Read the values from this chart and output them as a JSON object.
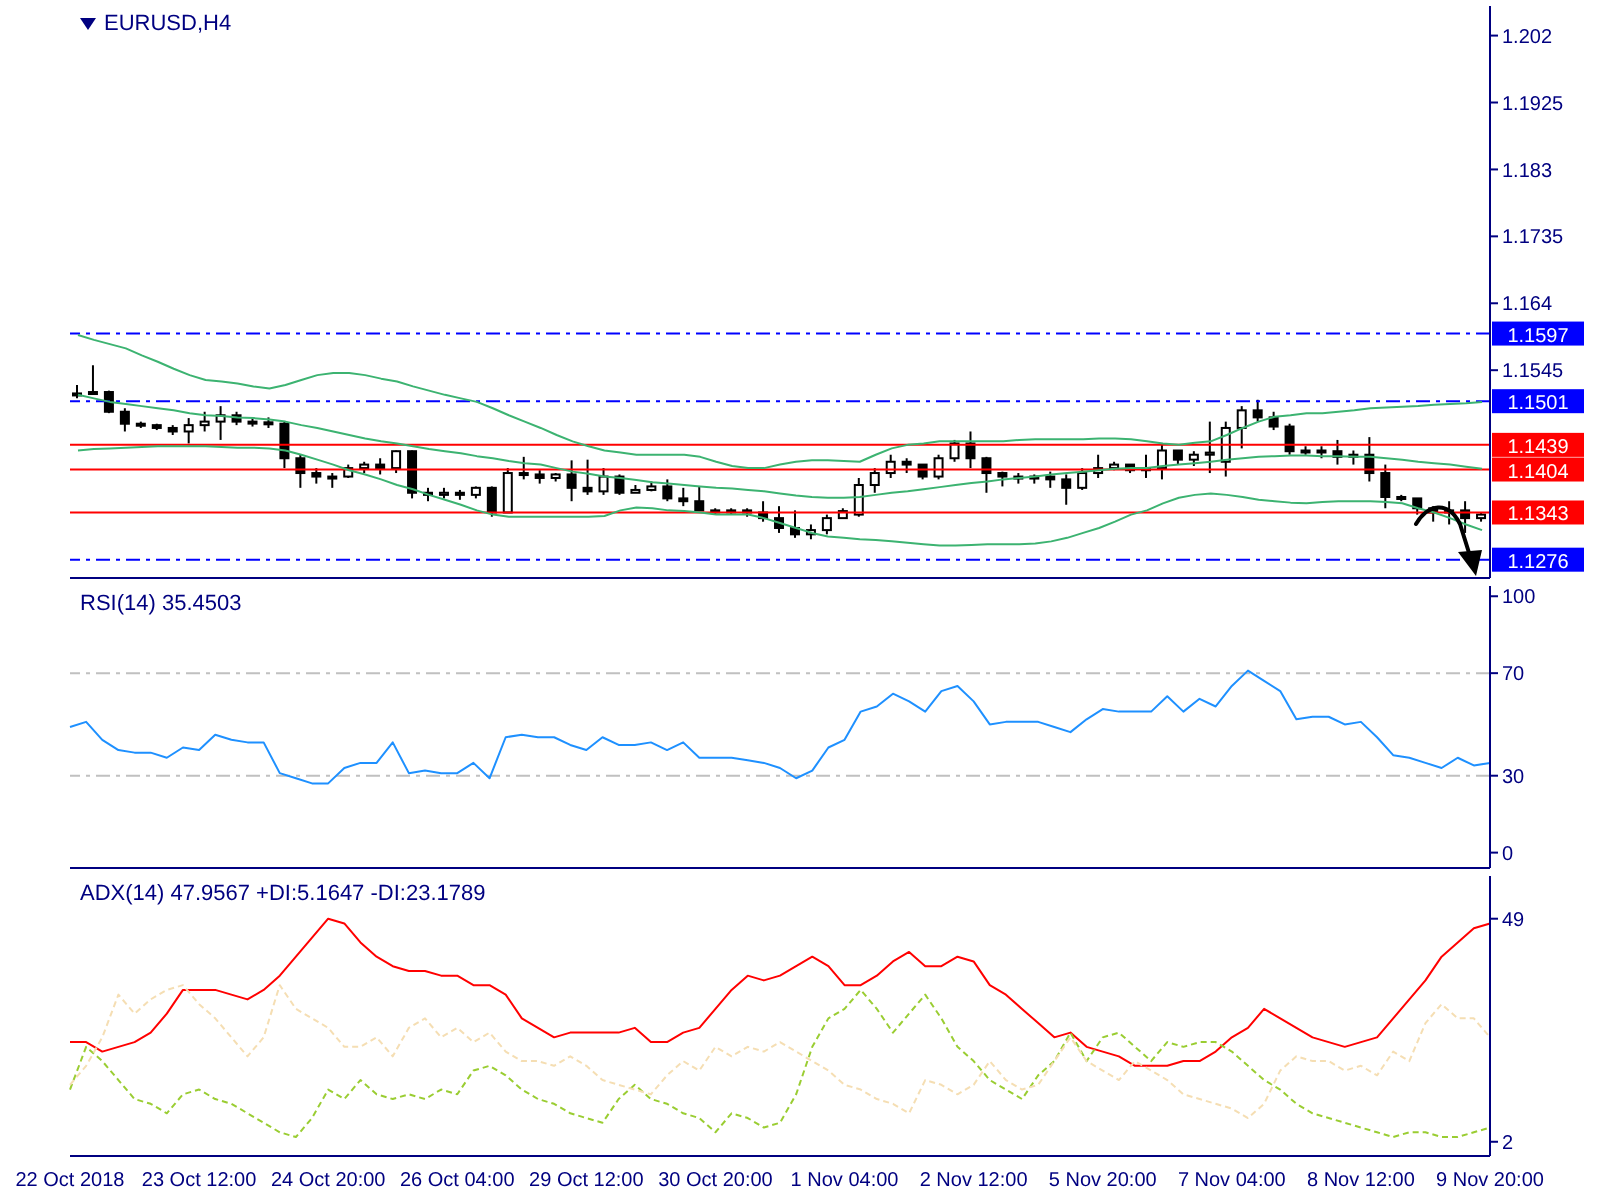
{
  "chart_data": [
    {
      "type": "candlestick",
      "title": "EURUSD,H4",
      "tick_labels": "y",
      "color": "#000000",
      "categories": [
        null,
        null,
        null,
        null,
        null,
        null,
        null,
        null,
        null,
        null,
        null,
        null,
        null,
        null,
        null,
        null,
        null,
        null,
        null,
        null,
        null,
        null,
        null,
        null,
        null,
        null,
        null,
        null,
        null,
        null,
        null,
        null,
        null,
        null,
        null,
        null,
        null,
        null,
        null,
        null,
        null,
        null,
        null,
        null,
        null,
        null,
        null,
        null,
        null,
        null,
        null,
        null,
        null,
        null,
        null,
        null,
        null,
        null,
        null,
        null,
        null,
        null,
        null,
        null,
        null,
        null,
        null,
        null,
        null,
        null,
        null,
        null,
        null,
        null,
        null,
        null,
        null,
        null,
        null,
        null,
        null,
        null,
        null,
        null,
        null,
        null,
        null,
        null,
        null
      ],
      "ylim": [
        1.125,
        1.2062
      ],
      "yticks": [
        1.202,
        1.1925,
        1.183,
        1.1735,
        1.164,
        1.1545
      ],
      "ohlc": [
        [
          1.151,
          1.1524,
          1.1505,
          1.1512
        ],
        [
          1.1512,
          1.1552,
          1.151,
          1.1514
        ],
        [
          1.1514,
          1.1516,
          1.1484,
          1.1486
        ],
        [
          1.1486,
          1.1491,
          1.1458,
          1.1469
        ],
        [
          1.1469,
          1.1472,
          1.1463,
          1.1467
        ],
        [
          1.1467,
          1.1469,
          1.146,
          1.1463
        ],
        [
          1.1463,
          1.1467,
          1.1453,
          1.1458
        ],
        [
          1.1458,
          1.1477,
          1.1441,
          1.1467
        ],
        [
          1.1467,
          1.1486,
          1.1458,
          1.1472
        ],
        [
          1.1472,
          1.1494,
          1.1446,
          1.1481
        ],
        [
          1.1481,
          1.1486,
          1.1467,
          1.1472
        ],
        [
          1.1472,
          1.1477,
          1.1465,
          1.1471
        ],
        [
          1.1471,
          1.1478,
          1.1463,
          1.1469
        ],
        [
          1.1469,
          1.1472,
          1.1406,
          1.142
        ],
        [
          1.142,
          1.1425,
          1.1378,
          1.1399
        ],
        [
          1.1399,
          1.1406,
          1.1384,
          1.1394
        ],
        [
          1.1394,
          1.1399,
          1.1378,
          1.1392
        ],
        [
          1.1394,
          1.1411,
          1.1392,
          1.1406
        ],
        [
          1.1406,
          1.1415,
          1.1399,
          1.1411
        ],
        [
          1.1411,
          1.142,
          1.1397,
          1.1406
        ],
        [
          1.1406,
          1.1431,
          1.1399,
          1.143
        ],
        [
          1.143,
          1.1431,
          1.1363,
          1.1371
        ],
        [
          1.1371,
          1.1378,
          1.1359,
          1.1368
        ],
        [
          1.1368,
          1.1378,
          1.1363,
          1.1371
        ],
        [
          1.1371,
          1.1375,
          1.1361,
          1.1368
        ],
        [
          1.1368,
          1.138,
          1.1363,
          1.1378
        ],
        [
          1.1378,
          1.138,
          1.1337,
          1.1343
        ],
        [
          1.1343,
          1.1406,
          1.1343,
          1.1399
        ],
        [
          1.1399,
          1.1422,
          1.139,
          1.1397
        ],
        [
          1.1397,
          1.1403,
          1.1384,
          1.1392
        ],
        [
          1.1392,
          1.1399,
          1.1387,
          1.1397
        ],
        [
          1.1397,
          1.1417,
          1.1359,
          1.1378
        ],
        [
          1.1378,
          1.1418,
          1.1368,
          1.1373
        ],
        [
          1.1373,
          1.1406,
          1.1368,
          1.1394
        ],
        [
          1.1394,
          1.1397,
          1.1368,
          1.1371
        ],
        [
          1.1371,
          1.1382,
          1.1371,
          1.1375
        ],
        [
          1.1375,
          1.1387,
          1.1373,
          1.138
        ],
        [
          1.138,
          1.139,
          1.1359,
          1.1363
        ],
        [
          1.1363,
          1.1378,
          1.1352,
          1.1359
        ],
        [
          1.1359,
          1.138,
          1.1345,
          1.1346
        ],
        [
          1.1346,
          1.1349,
          1.134,
          1.1345
        ],
        [
          1.1345,
          1.1349,
          1.134,
          1.1346
        ],
        [
          1.1346,
          1.1349,
          1.1337,
          1.1343
        ],
        [
          1.1343,
          1.1359,
          1.133,
          1.1335
        ],
        [
          1.1335,
          1.1352,
          1.1314,
          1.1321
        ],
        [
          1.1321,
          1.1346,
          1.1307,
          1.1312
        ],
        [
          1.1312,
          1.1326,
          1.1305,
          1.1318
        ],
        [
          1.1318,
          1.134,
          1.1312,
          1.1335
        ],
        [
          1.1335,
          1.1349,
          1.1335,
          1.1345
        ],
        [
          1.134,
          1.1392,
          1.1337,
          1.1382
        ],
        [
          1.1382,
          1.1406,
          1.1371,
          1.1399
        ],
        [
          1.1399,
          1.1425,
          1.1392,
          1.1415
        ],
        [
          1.1415,
          1.142,
          1.1399,
          1.1411
        ],
        [
          1.1411,
          1.1411,
          1.139,
          1.1394
        ],
        [
          1.1394,
          1.1425,
          1.139,
          1.142
        ],
        [
          1.142,
          1.1446,
          1.1415,
          1.1441
        ],
        [
          1.1441,
          1.1458,
          1.1406,
          1.142
        ],
        [
          1.142,
          1.1422,
          1.1371,
          1.1399
        ],
        [
          1.1399,
          1.1401,
          1.138,
          1.1394
        ],
        [
          1.1394,
          1.1399,
          1.1384,
          1.1392
        ],
        [
          1.1392,
          1.1397,
          1.1384,
          1.1394
        ],
        [
          1.1394,
          1.1401,
          1.1378,
          1.139
        ],
        [
          1.139,
          1.1397,
          1.1354,
          1.1378
        ],
        [
          1.1378,
          1.1406,
          1.1375,
          1.1399
        ],
        [
          1.1399,
          1.1425,
          1.1392,
          1.1406
        ],
        [
          1.1406,
          1.1415,
          1.1403,
          1.1411
        ],
        [
          1.1411,
          1.1411,
          1.1399,
          1.1403
        ],
        [
          1.1403,
          1.1425,
          1.1392,
          1.1406
        ],
        [
          1.1406,
          1.1441,
          1.139,
          1.1431
        ],
        [
          1.1431,
          1.1431,
          1.1411,
          1.1418
        ],
        [
          1.1418,
          1.143,
          1.1409,
          1.1425
        ],
        [
          1.1425,
          1.1472,
          1.1399,
          1.1428
        ],
        [
          1.1415,
          1.1472,
          1.1394,
          1.1463
        ],
        [
          1.1463,
          1.1494,
          1.1434,
          1.1488
        ],
        [
          1.1488,
          1.1503,
          1.1472,
          1.1478
        ],
        [
          1.1478,
          1.1486,
          1.146,
          1.1465
        ],
        [
          1.1465,
          1.1469,
          1.1425,
          1.143
        ],
        [
          1.143,
          1.1437,
          1.1425,
          1.1431
        ],
        [
          1.1431,
          1.1437,
          1.142,
          1.143
        ],
        [
          1.143,
          1.1446,
          1.1411,
          1.1422
        ],
        [
          1.1422,
          1.1431,
          1.1411,
          1.1425
        ],
        [
          1.1425,
          1.145,
          1.1387,
          1.1399
        ],
        [
          1.1399,
          1.1411,
          1.1349,
          1.1365
        ],
        [
          1.1365,
          1.1368,
          1.1359,
          1.1363
        ],
        [
          1.1363,
          1.1363,
          1.134,
          1.1349
        ],
        [
          1.1349,
          1.1352,
          1.133,
          1.1343
        ],
        [
          1.1343,
          1.1359,
          1.1326,
          1.1346
        ],
        [
          1.1346,
          1.1359,
          1.1314,
          1.1335
        ],
        [
          1.1335,
          1.1343,
          1.133,
          1.134
        ]
      ],
      "series": [
        {
          "type": "line",
          "color": "#3cb371",
          "values": [
            1.1595,
            1.1588,
            1.1582,
            1.1576,
            1.1566,
            1.1557,
            1.1547,
            1.1538,
            1.1531,
            1.1529,
            1.1526,
            1.1522,
            1.1519,
            1.1524,
            1.1531,
            1.1538,
            1.1541,
            1.1541,
            1.1538,
            1.1533,
            1.1529,
            1.1522,
            1.1516,
            1.151,
            1.1505,
            1.15,
            1.1491,
            1.1481,
            1.1472,
            1.1463,
            1.1453,
            1.1444,
            1.1437,
            1.1431,
            1.1428,
            1.1425,
            1.1425,
            1.1425,
            1.1425,
            1.1422,
            1.1415,
            1.1409,
            1.1406,
            1.1406,
            1.1411,
            1.1415,
            1.1417,
            1.1417,
            1.1416,
            1.1415,
            1.1425,
            1.1434,
            1.1439,
            1.1441,
            1.1444,
            1.1444,
            1.1444,
            1.1444,
            1.1444,
            1.1446,
            1.1447,
            1.1447,
            1.1447,
            1.1447,
            1.1448,
            1.1448,
            1.1447,
            1.1444,
            1.1441,
            1.1439,
            1.1442,
            1.1444,
            1.1453,
            1.1463,
            1.1472,
            1.1479,
            1.1481,
            1.1484,
            1.1484,
            1.1486,
            1.1488,
            1.1491,
            1.1492,
            1.1493,
            1.1494,
            1.1496,
            1.1497,
            1.1498,
            1.15
          ]
        },
        {
          "type": "line",
          "color": "#3cb371",
          "values": [
            1.151,
            1.1505,
            1.15,
            1.1497,
            1.1494,
            1.1491,
            1.1488,
            1.1484,
            1.1481,
            1.148,
            1.1478,
            1.1477,
            1.1475,
            1.1472,
            1.1467,
            1.1463,
            1.1458,
            1.1453,
            1.1448,
            1.1444,
            1.1441,
            1.1437,
            1.1433,
            1.143,
            1.1427,
            1.1423,
            1.142,
            1.1416,
            1.1413,
            1.1411,
            1.1406,
            1.1401,
            1.1398,
            1.1394,
            1.1392,
            1.1389,
            1.1386,
            1.1384,
            1.1382,
            1.138,
            1.1378,
            1.1377,
            1.1375,
            1.1373,
            1.137,
            1.1367,
            1.1365,
            1.1364,
            1.1364,
            1.1365,
            1.1368,
            1.1371,
            1.1373,
            1.1376,
            1.1379,
            1.1382,
            1.1385,
            1.1387,
            1.139,
            1.1392,
            1.1394,
            1.1397,
            1.1399,
            1.1401,
            1.1403,
            1.1405,
            1.1406,
            1.1406,
            1.1409,
            1.1411,
            1.1413,
            1.1415,
            1.1418,
            1.142,
            1.1422,
            1.1423,
            1.1424,
            1.1424,
            1.1423,
            1.1423,
            1.1422,
            1.1422,
            1.142,
            1.1418,
            1.1415,
            1.1413,
            1.1411,
            1.1408,
            1.1405
          ]
        },
        {
          "type": "line",
          "color": "#3cb371",
          "values": [
            1.1431,
            1.1433,
            1.1434,
            1.1435,
            1.1436,
            1.1437,
            1.1437,
            1.1437,
            1.1437,
            1.1436,
            1.1435,
            1.1435,
            1.1434,
            1.1431,
            1.1425,
            1.1418,
            1.1411,
            1.1403,
            1.1397,
            1.139,
            1.1382,
            1.1376,
            1.1368,
            1.1361,
            1.1354,
            1.1346,
            1.134,
            1.1337,
            1.1337,
            1.1337,
            1.1337,
            1.1337,
            1.1337,
            1.1338,
            1.1346,
            1.135,
            1.1349,
            1.1346,
            1.1345,
            1.1343,
            1.134,
            1.134,
            1.134,
            1.1335,
            1.1328,
            1.1321,
            1.1314,
            1.1309,
            1.1307,
            1.1305,
            1.1304,
            1.1302,
            1.13,
            1.1298,
            1.1296,
            1.1296,
            1.1297,
            1.1298,
            1.1298,
            1.1298,
            1.1299,
            1.1302,
            1.1307,
            1.1314,
            1.1321,
            1.133,
            1.134,
            1.1346,
            1.1356,
            1.1364,
            1.1368,
            1.137,
            1.1368,
            1.1365,
            1.1361,
            1.1359,
            1.1357,
            1.1356,
            1.1358,
            1.1359,
            1.1359,
            1.1359,
            1.1358,
            1.1356,
            1.1349,
            1.1343,
            1.1335,
            1.1326,
            1.1318
          ]
        }
      ],
      "ref_lines": [
        {
          "axis": "y",
          "value": 1.1597,
          "label": "1.1597",
          "color": "#0000ff",
          "line_style": "dashed"
        },
        {
          "axis": "y",
          "value": 1.1501,
          "label": "1.1501",
          "color": "#0000ff",
          "line_style": "dashed"
        },
        {
          "axis": "y",
          "value": 1.1439,
          "label": "1.1439",
          "color": "#ff0000",
          "line_style": "solid"
        },
        {
          "axis": "y",
          "value": 1.1404,
          "label": "1.1404",
          "color": "#ff0000",
          "line_style": "solid"
        },
        {
          "axis": "y",
          "value": 1.1343,
          "label": "1.1343",
          "color": "#ff0000",
          "line_style": "solid"
        },
        {
          "axis": "y",
          "value": 1.1276,
          "label": "1.1276",
          "color": "#0000ff",
          "line_style": "dashed"
        }
      ]
    },
    {
      "type": "line",
      "title": "RSI(14) 35.4503",
      "tick_labels": "y",
      "categories": [
        null,
        null,
        null,
        null,
        null,
        null,
        null,
        null,
        null,
        null,
        null,
        null,
        null,
        null,
        null,
        null,
        null,
        null,
        null,
        null,
        null,
        null,
        null,
        null,
        null,
        null,
        null,
        null,
        null,
        null,
        null,
        null,
        null,
        null,
        null,
        null,
        null,
        null,
        null,
        null,
        null,
        null,
        null,
        null,
        null,
        null,
        null,
        null,
        null,
        null,
        null,
        null,
        null,
        null,
        null,
        null,
        null,
        null,
        null,
        null,
        null,
        null,
        null,
        null,
        null,
        null,
        null,
        null,
        null,
        null,
        null,
        null,
        null,
        null,
        null,
        null,
        null,
        null,
        null,
        null,
        null,
        null,
        null,
        null,
        null,
        null,
        null,
        null,
        null
      ],
      "ylim": [
        -6,
        104
      ],
      "yticks": [
        0,
        30,
        70,
        100
      ],
      "series": [
        {
          "color": "#1e90ff",
          "values": [
            49,
            51,
            44,
            40,
            39,
            39,
            37,
            41,
            40,
            46,
            44,
            43,
            43,
            31,
            29,
            27,
            27,
            33,
            35,
            35,
            43,
            31,
            32,
            31,
            31,
            35,
            29,
            45,
            46,
            45,
            45,
            42,
            40,
            45,
            42,
            42,
            43,
            40,
            43,
            37,
            37,
            37,
            36,
            35,
            33,
            29,
            32,
            41,
            44,
            55,
            57,
            62,
            59,
            55,
            63,
            65,
            59,
            50,
            51,
            51,
            51,
            49,
            47,
            52,
            56,
            55,
            55,
            55,
            61,
            55,
            60,
            57,
            65,
            71,
            67,
            63,
            52,
            53,
            53,
            50,
            51,
            45,
            38,
            37,
            35,
            33,
            37,
            34,
            35
          ]
        }
      ],
      "ref_lines": [
        {
          "axis": "y",
          "value": 70,
          "color": "#c0c0c0",
          "line_style": "dashed"
        },
        {
          "axis": "y",
          "value": 30,
          "color": "#c0c0c0",
          "line_style": "dashed"
        }
      ]
    },
    {
      "type": "line",
      "title": "ADX(14) 47.9567 +DI:5.1647 -DI:23.1789",
      "categories": [
        "22 Oct 2018",
        null,
        null,
        null,
        null,
        null,
        null,
        null,
        "23 Oct 12:00",
        null,
        null,
        null,
        null,
        null,
        null,
        null,
        "24 Oct 20:00",
        null,
        null,
        null,
        null,
        null,
        null,
        null,
        "26 Oct 04:00",
        null,
        null,
        null,
        null,
        null,
        null,
        null,
        "29 Oct 12:00",
        null,
        null,
        null,
        null,
        null,
        null,
        null,
        "30 Oct 20:00",
        null,
        null,
        null,
        null,
        null,
        null,
        null,
        "1 Nov 04:00",
        null,
        null,
        null,
        null,
        null,
        null,
        null,
        "2 Nov 12:00",
        null,
        null,
        null,
        null,
        null,
        null,
        null,
        "5 Nov 20:00",
        null,
        null,
        null,
        null,
        null,
        null,
        null,
        "7 Nov 04:00",
        null,
        null,
        null,
        null,
        null,
        null,
        null,
        "8 Nov 12:00",
        null,
        null,
        null,
        null,
        null,
        null,
        null,
        "9 Nov 20:00"
      ],
      "ylim": [
        -1,
        58
      ],
      "yticks": [
        2,
        49
      ],
      "series": [
        {
          "color": "#ff0000",
          "line_style": "solid",
          "values": [
            23,
            23,
            21,
            22,
            23,
            25,
            29,
            34,
            34,
            34,
            33,
            32,
            34,
            37,
            41,
            45,
            49,
            48,
            44,
            41,
            39,
            38,
            38,
            37,
            37,
            35,
            35,
            33,
            28,
            26,
            24,
            25,
            25,
            25,
            25,
            26,
            23,
            23,
            25,
            26,
            30,
            34,
            37,
            36,
            37,
            39,
            41,
            39,
            35,
            35,
            37,
            40,
            42,
            39,
            39,
            41,
            40,
            35,
            33,
            30,
            27,
            24,
            25,
            22,
            21,
            20,
            18,
            18,
            18,
            19,
            19,
            21,
            24,
            26,
            30,
            28,
            26,
            24,
            23,
            22,
            23,
            24,
            28,
            32,
            36,
            41,
            44,
            47,
            48
          ]
        },
        {
          "color": "#9acd32",
          "line_style": "dashed",
          "values": [
            13,
            22,
            19,
            15,
            11,
            10,
            8,
            12,
            13,
            11,
            10,
            8,
            6,
            4,
            3,
            7,
            13,
            11,
            15,
            12,
            11,
            12,
            11,
            13,
            12,
            17,
            18,
            16,
            13,
            11,
            10,
            8,
            7,
            6,
            11,
            14,
            11,
            10,
            8,
            7,
            4,
            8,
            7,
            5,
            6,
            12,
            22,
            28,
            30,
            34,
            30,
            25,
            29,
            33,
            28,
            22,
            19,
            15,
            13,
            11,
            16,
            19,
            25,
            19,
            24,
            25,
            22,
            19,
            23,
            22,
            23,
            23,
            21,
            18,
            15,
            13,
            10,
            8,
            7,
            6,
            5,
            4,
            3,
            4,
            4,
            3,
            3,
            4,
            5
          ]
        },
        {
          "color": "#f5deb3",
          "line_style": "dashed",
          "values": [
            14,
            18,
            24,
            33,
            29,
            32,
            34,
            35,
            31,
            28,
            24,
            20,
            24,
            35,
            30,
            28,
            26,
            22,
            22,
            24,
            20,
            26,
            28,
            24,
            26,
            23,
            25,
            21,
            19,
            19,
            18,
            20,
            18,
            15,
            14,
            13,
            12,
            16,
            19,
            17,
            22,
            20,
            22,
            21,
            23,
            21,
            19,
            17,
            14,
            13,
            11,
            10,
            8,
            15,
            14,
            12,
            14,
            19,
            15,
            13,
            14,
            19,
            24,
            19,
            17,
            15,
            19,
            17,
            15,
            12,
            11,
            10,
            9,
            7,
            10,
            17,
            20,
            19,
            19,
            17,
            18,
            16,
            21,
            19,
            27,
            31,
            28,
            28,
            24
          ]
        }
      ]
    }
  ]
}
